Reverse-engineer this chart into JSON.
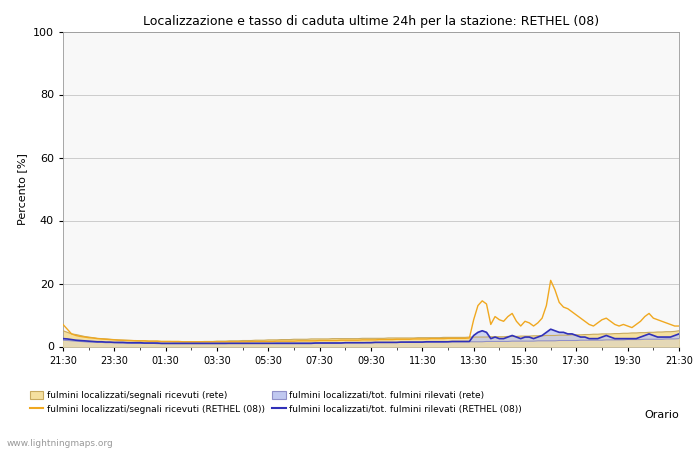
{
  "title": "Localizzazione e tasso di caduta ultime 24h per la stazione: RETHEL (08)",
  "xlabel": "Orario",
  "ylabel": "Percento [%]",
  "ylim": [
    0,
    100
  ],
  "yticks": [
    0,
    20,
    40,
    60,
    80,
    100
  ],
  "x_labels": [
    "21:30",
    "23:30",
    "01:30",
    "03:30",
    "05:30",
    "07:30",
    "09:30",
    "11:30",
    "13:30",
    "15:30",
    "17:30",
    "19:30",
    "21:30"
  ],
  "watermark": "www.lightningmaps.org",
  "fill_rete_color": "#f5e0a0",
  "fill_rethel_blue": "#c0c8f0",
  "line_rethel_orange": "#f0a820",
  "line_rethel_blue": "#3030b8",
  "line_rete_tan": "#c8aa60",
  "line_rete_blue_light": "#9090c8",
  "background_color": "#ffffff",
  "plot_bg_color": "#f8f8f8",
  "grid_color": "#cccccc",
  "n_points": 145,
  "rete_fill_localized": [
    5.0,
    4.5,
    4.0,
    3.8,
    3.5,
    3.2,
    3.0,
    2.8,
    2.6,
    2.5,
    2.4,
    2.3,
    2.2,
    2.1,
    2.0,
    2.0,
    1.9,
    1.9,
    1.8,
    1.8,
    1.7,
    1.7,
    1.7,
    1.6,
    1.6,
    1.6,
    1.5,
    1.5,
    1.5,
    1.5,
    1.5,
    1.5,
    1.5,
    1.6,
    1.6,
    1.6,
    1.7,
    1.7,
    1.7,
    1.8,
    1.8,
    1.8,
    1.9,
    1.9,
    1.9,
    2.0,
    2.0,
    2.0,
    2.1,
    2.1,
    2.1,
    2.2,
    2.2,
    2.2,
    2.3,
    2.3,
    2.3,
    2.3,
    2.4,
    2.4,
    2.4,
    2.4,
    2.4,
    2.5,
    2.5,
    2.5,
    2.5,
    2.5,
    2.5,
    2.5,
    2.6,
    2.6,
    2.6,
    2.6,
    2.6,
    2.6,
    2.7,
    2.7,
    2.7,
    2.7,
    2.7,
    2.7,
    2.7,
    2.8,
    2.8,
    2.8,
    2.8,
    2.8,
    2.8,
    2.9,
    2.9,
    2.9,
    2.9,
    2.9,
    2.9,
    3.0,
    3.0,
    3.0,
    3.0,
    3.0,
    3.1,
    3.1,
    3.1,
    3.1,
    3.2,
    3.2,
    3.2,
    3.3,
    3.3,
    3.3,
    3.4,
    3.4,
    3.4,
    3.5,
    3.5,
    3.5,
    3.6,
    3.6,
    3.6,
    3.7,
    3.7,
    3.7,
    3.8,
    3.8,
    3.9,
    3.9,
    4.0,
    4.0,
    4.0,
    4.1,
    4.1,
    4.2,
    4.2,
    4.3,
    4.3,
    4.4,
    4.4,
    4.5,
    4.5,
    4.6,
    4.6,
    4.7,
    4.7,
    4.8,
    5.0
  ],
  "rete_fill_total": [
    2.0,
    1.9,
    1.8,
    1.7,
    1.6,
    1.5,
    1.4,
    1.4,
    1.3,
    1.3,
    1.2,
    1.2,
    1.2,
    1.1,
    1.1,
    1.1,
    1.0,
    1.0,
    1.0,
    1.0,
    1.0,
    1.0,
    0.9,
    0.9,
    0.9,
    0.9,
    0.9,
    0.9,
    0.9,
    0.9,
    0.9,
    0.9,
    0.9,
    0.9,
    0.9,
    0.9,
    0.9,
    0.9,
    0.9,
    1.0,
    1.0,
    1.0,
    1.0,
    1.0,
    1.0,
    1.0,
    1.0,
    1.0,
    1.0,
    1.0,
    1.1,
    1.1,
    1.1,
    1.1,
    1.1,
    1.1,
    1.1,
    1.1,
    1.1,
    1.1,
    1.2,
    1.2,
    1.2,
    1.2,
    1.2,
    1.2,
    1.2,
    1.2,
    1.2,
    1.2,
    1.2,
    1.3,
    1.3,
    1.3,
    1.3,
    1.3,
    1.3,
    1.3,
    1.3,
    1.3,
    1.3,
    1.4,
    1.4,
    1.4,
    1.4,
    1.4,
    1.4,
    1.4,
    1.4,
    1.4,
    1.5,
    1.5,
    1.5,
    1.5,
    1.5,
    1.5,
    1.5,
    1.5,
    1.5,
    1.6,
    1.6,
    1.6,
    1.6,
    1.6,
    1.6,
    1.7,
    1.7,
    1.7,
    1.7,
    1.7,
    1.7,
    1.8,
    1.8,
    1.8,
    1.8,
    1.8,
    1.9,
    1.9,
    1.9,
    1.9,
    1.9,
    2.0,
    2.0,
    2.0,
    2.0,
    2.0,
    2.0,
    2.1,
    2.1,
    2.1,
    2.1,
    2.1,
    2.2,
    2.2,
    2.2,
    2.2,
    2.3,
    2.3,
    2.3,
    2.3,
    2.3,
    2.4,
    2.4,
    2.4,
    2.5
  ],
  "rethel_localized": [
    7.0,
    5.5,
    4.0,
    3.5,
    3.2,
    3.0,
    2.8,
    2.7,
    2.5,
    2.4,
    2.3,
    2.2,
    2.1,
    2.0,
    2.0,
    1.9,
    1.9,
    1.8,
    1.8,
    1.8,
    1.7,
    1.7,
    1.7,
    1.6,
    1.6,
    1.6,
    1.6,
    1.6,
    1.5,
    1.5,
    1.5,
    1.5,
    1.5,
    1.5,
    1.5,
    1.5,
    1.5,
    1.5,
    1.5,
    1.5,
    1.5,
    1.5,
    1.5,
    1.5,
    1.6,
    1.6,
    1.6,
    1.6,
    1.6,
    1.6,
    1.7,
    1.7,
    1.7,
    1.7,
    1.7,
    1.8,
    1.8,
    1.8,
    1.8,
    1.8,
    1.9,
    1.9,
    1.9,
    1.9,
    1.9,
    2.0,
    2.0,
    2.0,
    2.0,
    2.0,
    2.1,
    2.1,
    2.1,
    2.1,
    2.2,
    2.2,
    2.2,
    2.2,
    2.3,
    2.3,
    2.3,
    2.3,
    2.4,
    2.4,
    2.4,
    2.4,
    2.5,
    2.5,
    2.5,
    2.5,
    2.6,
    2.6,
    2.6,
    2.6,
    2.6,
    2.7,
    8.5,
    13.0,
    14.5,
    13.5,
    7.0,
    9.5,
    8.5,
    8.0,
    9.5,
    10.5,
    8.0,
    6.5,
    8.0,
    7.5,
    6.5,
    7.5,
    9.0,
    13.0,
    21.0,
    18.0,
    14.0,
    12.5,
    12.0,
    11.0,
    10.0,
    9.0,
    8.0,
    7.0,
    6.5,
    7.5,
    8.5,
    9.0,
    8.0,
    7.0,
    6.5,
    7.0,
    6.5,
    6.0,
    7.0,
    8.0,
    9.5,
    10.5,
    9.0,
    8.5,
    8.0,
    7.5,
    7.0,
    6.5,
    6.5
  ],
  "rethel_total": [
    2.5,
    2.4,
    2.2,
    2.0,
    1.9,
    1.8,
    1.7,
    1.6,
    1.5,
    1.5,
    1.4,
    1.4,
    1.3,
    1.3,
    1.3,
    1.2,
    1.2,
    1.2,
    1.2,
    1.1,
    1.1,
    1.1,
    1.1,
    1.0,
    1.0,
    1.0,
    1.0,
    1.0,
    1.0,
    1.0,
    1.0,
    1.0,
    1.0,
    1.0,
    1.0,
    1.0,
    1.0,
    1.0,
    1.0,
    1.0,
    1.0,
    1.0,
    1.0,
    1.0,
    1.0,
    1.0,
    1.0,
    1.0,
    1.0,
    1.0,
    1.0,
    1.0,
    1.0,
    1.0,
    1.0,
    1.0,
    1.0,
    1.0,
    1.0,
    1.1,
    1.1,
    1.1,
    1.1,
    1.1,
    1.1,
    1.1,
    1.2,
    1.2,
    1.2,
    1.2,
    1.2,
    1.2,
    1.2,
    1.3,
    1.3,
    1.3,
    1.3,
    1.3,
    1.3,
    1.4,
    1.4,
    1.4,
    1.4,
    1.4,
    1.4,
    1.5,
    1.5,
    1.5,
    1.5,
    1.5,
    1.5,
    1.6,
    1.6,
    1.6,
    1.6,
    1.6,
    3.5,
    4.5,
    5.0,
    4.5,
    2.5,
    3.0,
    2.5,
    2.5,
    3.0,
    3.5,
    3.0,
    2.5,
    3.0,
    3.0,
    2.5,
    3.0,
    3.5,
    4.5,
    5.5,
    5.0,
    4.5,
    4.5,
    4.0,
    4.0,
    3.5,
    3.0,
    3.0,
    2.5,
    2.5,
    2.5,
    3.0,
    3.5,
    3.0,
    2.5,
    2.5,
    2.5,
    2.5,
    2.5,
    2.5,
    3.0,
    3.5,
    4.0,
    3.5,
    3.0,
    3.0,
    3.0,
    3.0,
    3.5,
    4.0
  ]
}
